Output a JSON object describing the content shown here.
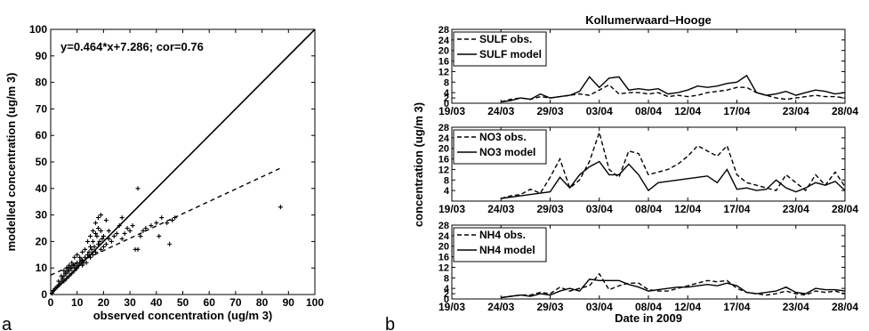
{
  "panels": {
    "a": "a",
    "b": "b"
  },
  "chart_data": [
    {
      "type": "scatter",
      "panel": "a",
      "xlabel": "observed concentration (ug/m 3)",
      "ylabel": "modelled concentration (ug/m 3)",
      "xlim": [
        0,
        100
      ],
      "ylim": [
        0,
        100
      ],
      "xticks": [
        "0",
        "10",
        "20",
        "30",
        "40",
        "50",
        "60",
        "70",
        "80",
        "90",
        "100"
      ],
      "yticks": [
        "0",
        "10",
        "20",
        "30",
        "40",
        "50",
        "60",
        "70",
        "80",
        "90",
        "100"
      ],
      "annotation": "y=0.464*x+7.286; cor=0.76",
      "marker": "+",
      "reference_line": {
        "slope": 1,
        "intercept": 0,
        "style": "solid"
      },
      "regression_line": {
        "slope": 0.464,
        "intercept": 7.286,
        "x_range": [
          0,
          87
        ],
        "style": "dashed"
      },
      "points": [
        [
          0.5,
          0.5
        ],
        [
          1,
          1.5
        ],
        [
          1.5,
          2
        ],
        [
          2,
          2.5
        ],
        [
          2.5,
          3
        ],
        [
          3,
          3.5
        ],
        [
          3,
          5
        ],
        [
          3.5,
          4
        ],
        [
          4,
          5
        ],
        [
          4,
          7
        ],
        [
          4.5,
          6
        ],
        [
          5,
          5
        ],
        [
          5,
          7
        ],
        [
          5,
          9
        ],
        [
          5.5,
          8
        ],
        [
          6,
          6
        ],
        [
          6,
          8
        ],
        [
          6,
          10
        ],
        [
          6.5,
          9
        ],
        [
          7,
          7
        ],
        [
          7,
          9
        ],
        [
          7,
          11
        ],
        [
          7.5,
          10
        ],
        [
          8,
          8
        ],
        [
          8,
          10
        ],
        [
          8,
          12
        ],
        [
          8.5,
          11
        ],
        [
          9,
          9
        ],
        [
          9,
          11
        ],
        [
          9,
          14
        ],
        [
          9.5,
          10
        ],
        [
          10,
          10
        ],
        [
          10,
          12
        ],
        [
          10,
          15
        ],
        [
          10.5,
          11
        ],
        [
          11,
          12
        ],
        [
          11,
          14
        ],
        [
          11.5,
          13
        ],
        [
          12,
          11
        ],
        [
          12,
          13
        ],
        [
          12,
          16
        ],
        [
          12.5,
          12
        ],
        [
          13,
          14
        ],
        [
          13,
          17
        ],
        [
          13.5,
          12
        ],
        [
          14,
          15
        ],
        [
          14,
          20
        ],
        [
          14.5,
          16
        ],
        [
          15,
          14
        ],
        [
          15,
          18
        ],
        [
          15,
          22
        ],
        [
          15.5,
          17
        ],
        [
          16,
          15
        ],
        [
          16,
          20
        ],
        [
          16,
          24
        ],
        [
          16.5,
          18
        ],
        [
          17,
          16
        ],
        [
          17,
          23
        ],
        [
          17,
          27
        ],
        [
          17.5,
          22
        ],
        [
          18,
          19
        ],
        [
          18,
          25
        ],
        [
          18,
          29
        ],
        [
          18.5,
          20
        ],
        [
          19,
          17
        ],
        [
          19,
          24
        ],
        [
          19,
          30
        ],
        [
          19.5,
          21
        ],
        [
          20,
          18
        ],
        [
          20,
          22
        ],
        [
          21,
          19
        ],
        [
          21,
          28
        ],
        [
          22,
          21
        ],
        [
          22,
          24
        ],
        [
          23,
          20
        ],
        [
          24,
          22
        ],
        [
          25,
          23
        ],
        [
          26,
          26
        ],
        [
          27,
          21
        ],
        [
          27,
          29
        ],
        [
          28,
          23
        ],
        [
          29,
          25
        ],
        [
          30,
          24
        ],
        [
          31,
          26
        ],
        [
          32,
          17
        ],
        [
          33,
          17
        ],
        [
          33,
          40
        ],
        [
          34,
          22
        ],
        [
          35,
          24
        ],
        [
          36,
          25
        ],
        [
          38,
          26
        ],
        [
          40,
          27
        ],
        [
          41,
          22
        ],
        [
          42,
          29
        ],
        [
          44,
          27
        ],
        [
          45,
          19
        ],
        [
          46,
          28
        ],
        [
          47,
          29
        ],
        [
          87,
          33
        ]
      ]
    },
    {
      "type": "line",
      "panel": "b",
      "title": "Kollumerwaard–Hooge",
      "xlabel": "Date in 2009",
      "ylabel": "concentration (ug/m 3)",
      "xticks": [
        "19/03",
        "24/03",
        "29/03",
        "03/04",
        "08/04",
        "12/04",
        "17/04",
        "23/04",
        "28/04"
      ],
      "xtick_days": [
        0,
        5,
        10,
        15,
        20,
        24,
        29,
        35,
        40
      ],
      "subplots": [
        {
          "name": "SULF",
          "ylim": [
            0,
            28
          ],
          "yticks": [
            "0",
            "2",
            "4",
            "8",
            "12",
            "16",
            "20",
            "24",
            "28"
          ],
          "legend": [
            "SULF obs.",
            "SULF model"
          ],
          "x": [
            5,
            6,
            7,
            8,
            9,
            10,
            11,
            12,
            13,
            14,
            15,
            16,
            17,
            18,
            19,
            20,
            21,
            22,
            23,
            24,
            25,
            26,
            27,
            28,
            29,
            30,
            31,
            32,
            33,
            34,
            35,
            36,
            37,
            38,
            39,
            40
          ],
          "series": [
            {
              "name": "SULF obs.",
              "style": "dashed",
              "values": [
                0.5,
                1.5,
                2,
                1.5,
                2.5,
                2,
                2.5,
                3,
                3.5,
                3,
                5,
                7,
                3.5,
                4,
                4,
                3.5,
                4,
                2.5,
                3,
                2.5,
                3,
                4,
                4.5,
                5,
                6,
                6,
                4,
                3,
                2,
                1.5,
                2,
                2.5,
                3,
                2.5,
                2.5,
                2
              ]
            },
            {
              "name": "SULF model",
              "style": "solid",
              "values": [
                0.5,
                1,
                2,
                1.5,
                3.5,
                2,
                2.5,
                3,
                4.5,
                10,
                6,
                9.5,
                10,
                5,
                5.5,
                5,
                5.5,
                3.5,
                4,
                5,
                6.5,
                6,
                6.5,
                7.5,
                8,
                10.5,
                4,
                3,
                3.5,
                4.5,
                3,
                4,
                5,
                4.5,
                3.5,
                4
              ]
            }
          ]
        },
        {
          "name": "NO3",
          "ylim": [
            0,
            28
          ],
          "yticks": [
            "4",
            "8",
            "12",
            "16",
            "20",
            "24",
            "28"
          ],
          "legend": [
            "NO3 obs.",
            "NO3 model"
          ],
          "x": [
            5,
            6,
            7,
            8,
            9,
            10,
            11,
            12,
            13,
            14,
            15,
            16,
            17,
            18,
            19,
            20,
            21,
            22,
            23,
            24,
            25,
            26,
            27,
            28,
            29,
            30,
            31,
            32,
            33,
            34,
            35,
            36,
            37,
            38,
            39,
            40
          ],
          "series": [
            {
              "name": "NO3 obs.",
              "style": "dashed",
              "values": [
                1,
                2,
                2.5,
                4.5,
                3,
                9,
                16,
                5,
                8,
                15,
                26,
                12,
                9,
                19,
                18,
                10,
                11,
                12,
                14,
                17,
                21,
                19,
                17,
                21,
                10,
                7,
                6,
                5,
                4,
                10,
                7,
                4,
                10,
                6,
                11,
                5.5
              ]
            },
            {
              "name": "NO3 model",
              "style": "solid",
              "values": [
                1,
                1.5,
                2,
                2.5,
                3,
                3.5,
                9,
                5,
                10,
                13,
                15,
                10,
                10,
                14,
                10,
                4,
                7,
                7.5,
                8,
                8.5,
                9,
                9.5,
                7,
                12,
                4.5,
                5,
                4,
                4.5,
                8,
                5,
                3.5,
                5,
                7,
                6,
                7.5,
                4
              ]
            }
          ]
        },
        {
          "name": "NH4",
          "ylim": [
            0,
            28
          ],
          "yticks": [
            "0",
            "2",
            "4",
            "8",
            "12",
            "16",
            "20",
            "24",
            "28"
          ],
          "legend": [
            "NH4 obs.",
            "NH4 model"
          ],
          "x": [
            5,
            6,
            7,
            8,
            9,
            10,
            11,
            12,
            13,
            14,
            15,
            16,
            17,
            18,
            19,
            20,
            21,
            22,
            23,
            24,
            25,
            26,
            27,
            28,
            29,
            30,
            31,
            32,
            33,
            34,
            35,
            36,
            37,
            38,
            39,
            40
          ],
          "series": [
            {
              "name": "NH4 obs.",
              "style": "dashed",
              "values": [
                0.5,
                1,
                1.5,
                1.5,
                2.5,
                2,
                4.5,
                3,
                4,
                5,
                9.5,
                3.5,
                5,
                6,
                6,
                3.5,
                3,
                3,
                4,
                5,
                6,
                7,
                6.5,
                7,
                4,
                2.5,
                2,
                1.5,
                2,
                3,
                2,
                1.5,
                3,
                2.5,
                3,
                2
              ]
            },
            {
              "name": "NH4 model",
              "style": "solid",
              "values": [
                0.5,
                1,
                1.5,
                1,
                2,
                1.5,
                3,
                4,
                3,
                7.5,
                7,
                7,
                7,
                5.5,
                4.5,
                3,
                3.5,
                4,
                4.5,
                4.5,
                5,
                5.5,
                5,
                6,
                5,
                2.5,
                2,
                2.5,
                3,
                4.5,
                2.5,
                2,
                4,
                3.5,
                3.5,
                3
              ]
            }
          ]
        }
      ]
    }
  ]
}
